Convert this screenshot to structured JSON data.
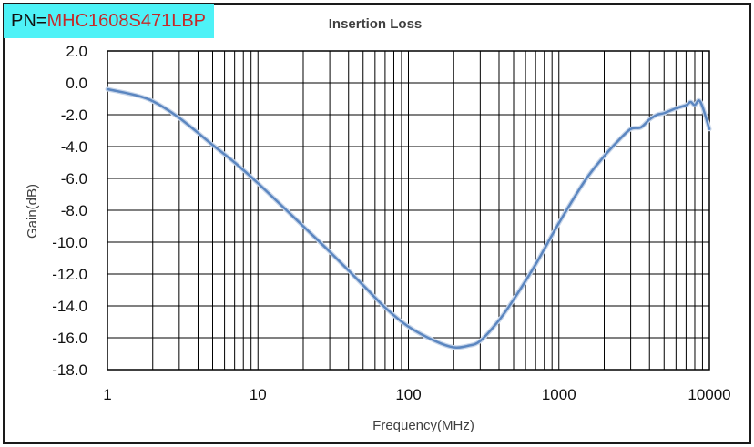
{
  "badge": {
    "prefix": "PN=",
    "part_number": "MHC1608S471LBP"
  },
  "colors": {
    "badge_bg": "#4ef2f7",
    "part_number": "#c62828",
    "curve": "#5b86c0",
    "grid": "#000000"
  },
  "chart_data": {
    "type": "line",
    "title": "Insertion Loss",
    "xlabel": "Frequency(MHz)",
    "ylabel": "Gain(dB)",
    "xscale": "log",
    "xlim": [
      1,
      10000
    ],
    "ylim": [
      -18,
      2
    ],
    "grid": true,
    "x_tick_labels": [
      "1",
      "10",
      "100",
      "1000",
      "10000"
    ],
    "y_tick_labels": [
      "2.0",
      "0.0",
      "-2.0",
      "-4.0",
      "-6.0",
      "-8.0",
      "-10.0",
      "-12.0",
      "-14.0",
      "-16.0",
      "-18.0"
    ],
    "series": [
      {
        "x": [
          1,
          1.5,
          2,
          3,
          5,
          7,
          10,
          20,
          30,
          50,
          70,
          100,
          150,
          200,
          250,
          300,
          400,
          500,
          700,
          1000,
          1500,
          2000,
          2500,
          3000,
          3500,
          4000,
          4500,
          5000,
          6000,
          7000,
          7500,
          8000,
          8500,
          9000,
          10000
        ],
        "y": [
          -0.4,
          -0.75,
          -1.15,
          -2.2,
          -3.9,
          -5.0,
          -6.3,
          -9.0,
          -10.6,
          -12.7,
          -14.1,
          -15.3,
          -16.2,
          -16.6,
          -16.5,
          -16.2,
          -14.9,
          -13.6,
          -11.4,
          -8.8,
          -6.1,
          -4.6,
          -3.6,
          -2.9,
          -2.8,
          -2.3,
          -2.0,
          -1.9,
          -1.6,
          -1.4,
          -1.2,
          -1.4,
          -1.1,
          -1.5,
          -2.9
        ]
      }
    ]
  }
}
